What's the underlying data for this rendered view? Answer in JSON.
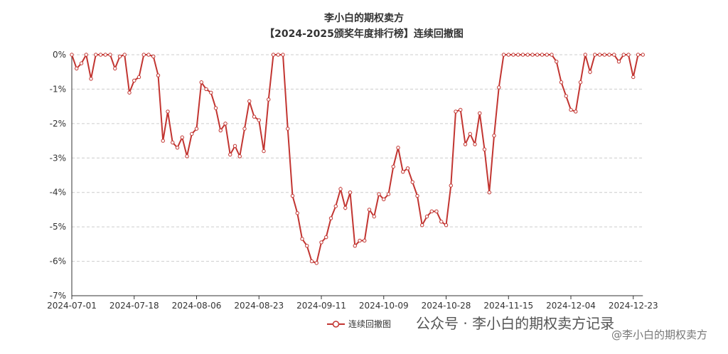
{
  "chart_data": {
    "type": "line",
    "title": "李小白的期权卖方",
    "subtitle": "【2024-2025颁奖年度排行榜】连续回撤图",
    "categories": [
      "2024-07-01",
      null,
      null,
      null,
      null,
      null,
      null,
      null,
      null,
      null,
      null,
      null,
      null,
      "2024-07-18",
      null,
      null,
      null,
      null,
      null,
      null,
      null,
      null,
      null,
      null,
      null,
      null,
      "2024-08-06",
      null,
      null,
      null,
      null,
      null,
      null,
      null,
      null,
      null,
      null,
      null,
      null,
      "2024-08-23",
      null,
      null,
      null,
      null,
      null,
      null,
      null,
      null,
      null,
      null,
      null,
      null,
      "2024-09-11",
      null,
      null,
      null,
      null,
      null,
      null,
      null,
      null,
      null,
      null,
      null,
      null,
      "2024-10-09",
      null,
      null,
      null,
      null,
      null,
      null,
      null,
      null,
      null,
      null,
      null,
      null,
      "2024-10-28",
      null,
      null,
      null,
      null,
      null,
      null,
      null,
      null,
      null,
      null,
      null,
      null,
      "2024-11-15",
      null,
      null,
      null,
      null,
      null,
      null,
      null,
      null,
      null,
      null,
      null,
      null,
      "2024-12-04",
      null,
      null,
      null,
      null,
      null,
      null,
      null,
      null,
      null,
      null,
      null,
      null,
      "2024-12-23",
      null,
      null
    ],
    "series": [
      {
        "name": "连续回撤图",
        "color": "#c23531",
        "values": [
          0,
          -0.4,
          -0.25,
          0,
          -0.7,
          0,
          0,
          0,
          0,
          -0.4,
          -0.05,
          0,
          -1.1,
          -0.75,
          -0.65,
          0,
          0,
          -0.05,
          -0.6,
          -2.5,
          -1.65,
          -2.55,
          -2.7,
          -2.4,
          -2.95,
          -2.3,
          -2.15,
          -0.8,
          -1.0,
          -1.1,
          -1.55,
          -2.2,
          -2.0,
          -2.9,
          -2.65,
          -2.95,
          -2.15,
          -1.35,
          -1.8,
          -1.9,
          -2.8,
          -1.3,
          0,
          0,
          0,
          -2.15,
          -4.1,
          -4.6,
          -5.35,
          -5.55,
          -6.0,
          -6.05,
          -5.45,
          -5.3,
          -4.75,
          -4.4,
          -3.9,
          -4.45,
          -4.0,
          -5.55,
          -5.4,
          -5.4,
          -4.5,
          -4.7,
          -4.05,
          -4.2,
          -4.05,
          -3.25,
          -2.7,
          -3.4,
          -3.3,
          -3.7,
          -4.1,
          -4.95,
          -4.7,
          -4.55,
          -4.55,
          -4.85,
          -4.95,
          -3.8,
          -1.65,
          -1.6,
          -2.6,
          -2.3,
          -2.6,
          -1.7,
          -2.75,
          -4.0,
          -2.35,
          -0.95,
          0,
          0,
          0,
          0,
          0,
          0,
          0,
          0,
          0,
          0,
          0,
          -0.2,
          -0.8,
          -1.2,
          -1.6,
          -1.65,
          -0.8,
          0,
          -0.5,
          0,
          0,
          0,
          0,
          0,
          -0.2,
          0,
          0,
          -0.65,
          0,
          0
        ]
      }
    ],
    "ylim": [
      -7,
      0
    ],
    "yticks": [
      {
        "value": 0,
        "label": "0%"
      },
      {
        "value": -1,
        "label": "-1%"
      },
      {
        "value": -2,
        "label": "-2%"
      },
      {
        "value": -3,
        "label": "-3%"
      },
      {
        "value": -4,
        "label": "-4%"
      },
      {
        "value": -5,
        "label": "-5%"
      },
      {
        "value": -6,
        "label": "-6%"
      },
      {
        "value": -7,
        "label": "-7%"
      }
    ],
    "grid": true,
    "legend": "bottom",
    "annotations": [
      "公众号 · 李小白的期权卖方记录",
      "@李小白的期权卖方"
    ]
  }
}
